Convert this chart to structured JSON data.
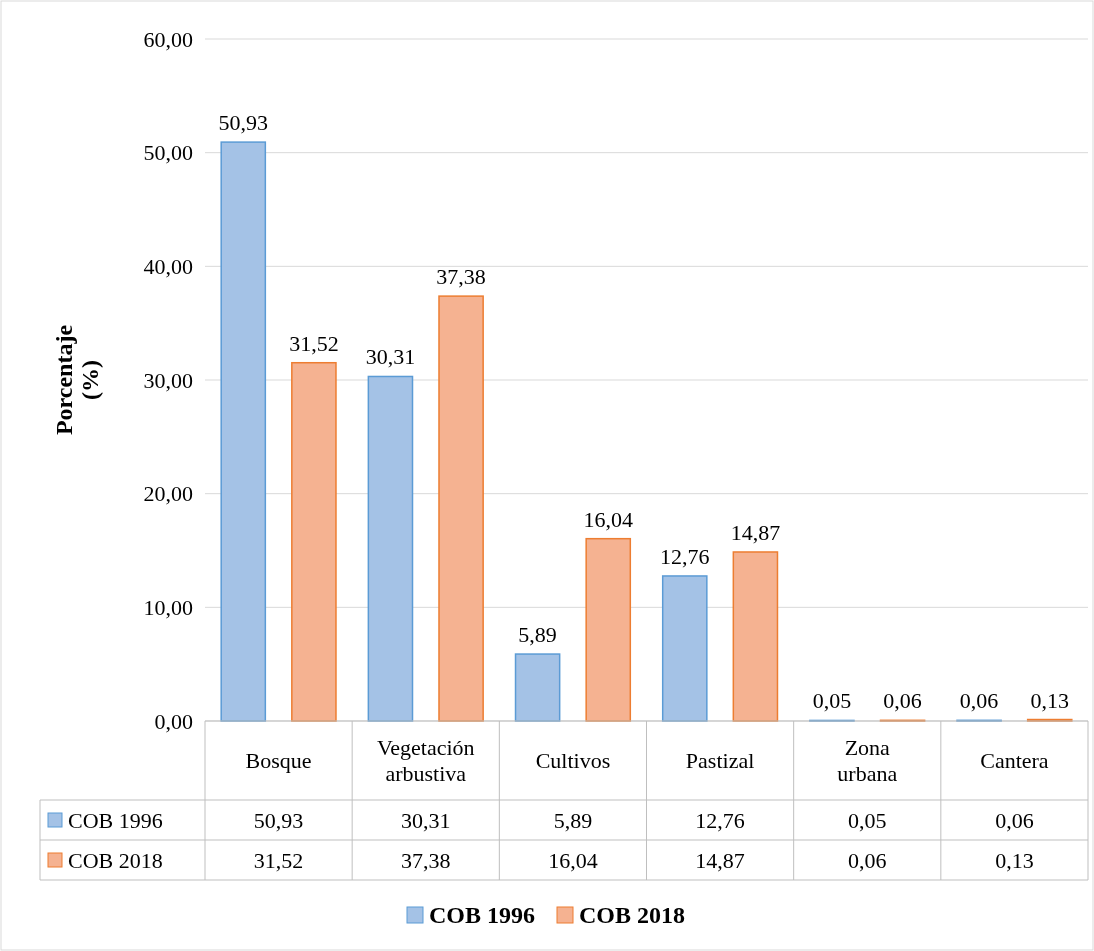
{
  "chart_data": {
    "type": "bar",
    "ylabel": "Porcentaje (%)",
    "categories": [
      "Bosque",
      "Vegetación arbustiva",
      "Cultivos",
      "Pastizal",
      "Zona urbana",
      "Cantera"
    ],
    "series": [
      {
        "name": "COB 1996",
        "color": "#a4c2e6",
        "values": [
          50.93,
          30.31,
          5.89,
          12.76,
          0.05,
          0.06
        ],
        "value_labels": [
          "50,93",
          "30,31",
          "5,89",
          "12,76",
          "0,05",
          "0,06"
        ]
      },
      {
        "name": "COB 2018",
        "color": "#f5b291",
        "values": [
          31.52,
          37.38,
          16.04,
          14.87,
          0.06,
          0.13
        ],
        "value_labels": [
          "31,52",
          "37,38",
          "16,04",
          "14,87",
          "0,06",
          "0,13"
        ]
      }
    ],
    "ylim": [
      0,
      60
    ],
    "yticks": [
      {
        "value": 0,
        "label": "0,00"
      },
      {
        "value": 10,
        "label": "10,00"
      },
      {
        "value": 20,
        "label": "20,00"
      },
      {
        "value": 30,
        "label": "30,00"
      },
      {
        "value": 40,
        "label": "40,00"
      },
      {
        "value": 50,
        "label": "50,00"
      },
      {
        "value": 60,
        "label": "60,00"
      }
    ],
    "grid": "y",
    "legend": "bottom"
  }
}
